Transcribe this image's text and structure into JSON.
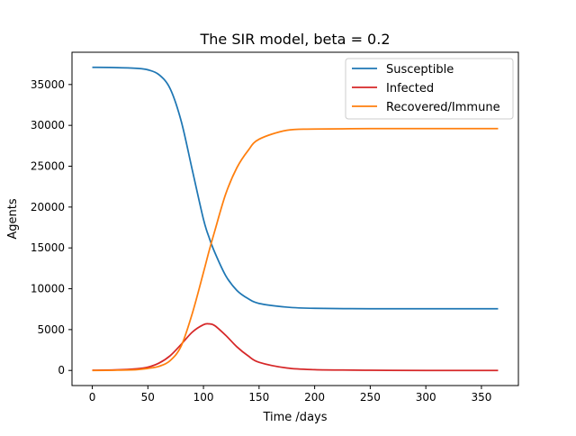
{
  "chart_data": {
    "type": "line",
    "title": "The SIR model, beta = 0.2",
    "xlabel": "Time /days",
    "ylabel": "Agents",
    "xlim": [
      -18.25,
      383.25
    ],
    "ylim": [
      -1850,
      38950
    ],
    "xticks": [
      0,
      50,
      100,
      150,
      200,
      250,
      300,
      350
    ],
    "yticks": [
      0,
      5000,
      10000,
      15000,
      20000,
      25000,
      30000,
      35000
    ],
    "grid": false,
    "legend": "top-right",
    "series": [
      {
        "name": "Susceptible",
        "color": "#1f77b4",
        "x": [
          0,
          20,
          40,
          50,
          60,
          70,
          80,
          90,
          100,
          105,
          110,
          120,
          130,
          140,
          150,
          175,
          200,
          250,
          300,
          365
        ],
        "y": [
          37100,
          37080,
          36980,
          36800,
          36200,
          34500,
          30500,
          24500,
          18500,
          16300,
          14500,
          11600,
          9800,
          8800,
          8200,
          7750,
          7600,
          7550,
          7550,
          7550
        ]
      },
      {
        "name": "Infected",
        "color": "#d62728",
        "x": [
          0,
          20,
          40,
          50,
          60,
          70,
          80,
          90,
          100,
          105,
          110,
          120,
          130,
          140,
          150,
          175,
          200,
          250,
          300,
          365
        ],
        "y": [
          20,
          60,
          200,
          400,
          900,
          1800,
          3200,
          4700,
          5600,
          5700,
          5500,
          4300,
          2900,
          1800,
          1000,
          300,
          100,
          20,
          0,
          0
        ]
      },
      {
        "name": "Recovered/Immune",
        "color": "#ff7f0e",
        "x": [
          0,
          20,
          40,
          50,
          60,
          70,
          80,
          90,
          100,
          105,
          110,
          120,
          130,
          140,
          150,
          175,
          200,
          250,
          300,
          365
        ],
        "y": [
          0,
          30,
          100,
          250,
          500,
          1200,
          3000,
          7000,
          12000,
          14600,
          17000,
          21600,
          24800,
          26900,
          28300,
          29400,
          29550,
          29600,
          29600,
          29600
        ]
      }
    ]
  }
}
